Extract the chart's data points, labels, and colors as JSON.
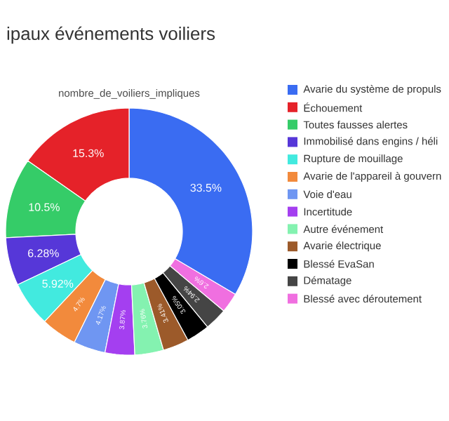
{
  "chart_data": {
    "type": "donut",
    "title": "ipaux événements voiliers",
    "subtitle": "nombre_de_voiliers_impliques",
    "categories": [
      "Avarie du système de propuls",
      "Échouement",
      "Toutes fausses alertes",
      "Immobilisé dans engins / héli",
      "Rupture de mouillage",
      "Avarie de l'appareil à gouvern",
      "Voie d'eau",
      "Incertitude",
      "Autre événement",
      "Avarie électrique",
      "Blessé EvaSan",
      "Dématage",
      "Blessé avec déroutement"
    ],
    "values": [
      33.5,
      15.3,
      10.5,
      6.28,
      5.92,
      4.7,
      4.17,
      3.87,
      3.76,
      3.41,
      3.05,
      2.94,
      2.6
    ],
    "value_labels": [
      "33.5%",
      "15.3%",
      "10.5%",
      "6.28%",
      "5.92%",
      "4.7%",
      "4.17%",
      "3.87%",
      "3.76%",
      "3.41%",
      "3.05%",
      "2.94%",
      "2.6%"
    ],
    "colors": [
      "#3a6cf2",
      "#e52229",
      "#35cc68",
      "#5637d8",
      "#42eadf",
      "#f28a3c",
      "#6f96f2",
      "#a43ff0",
      "#84f2b0",
      "#9c5a2a",
      "#000000",
      "#454545",
      "#f06fe0"
    ],
    "legend": "right"
  }
}
